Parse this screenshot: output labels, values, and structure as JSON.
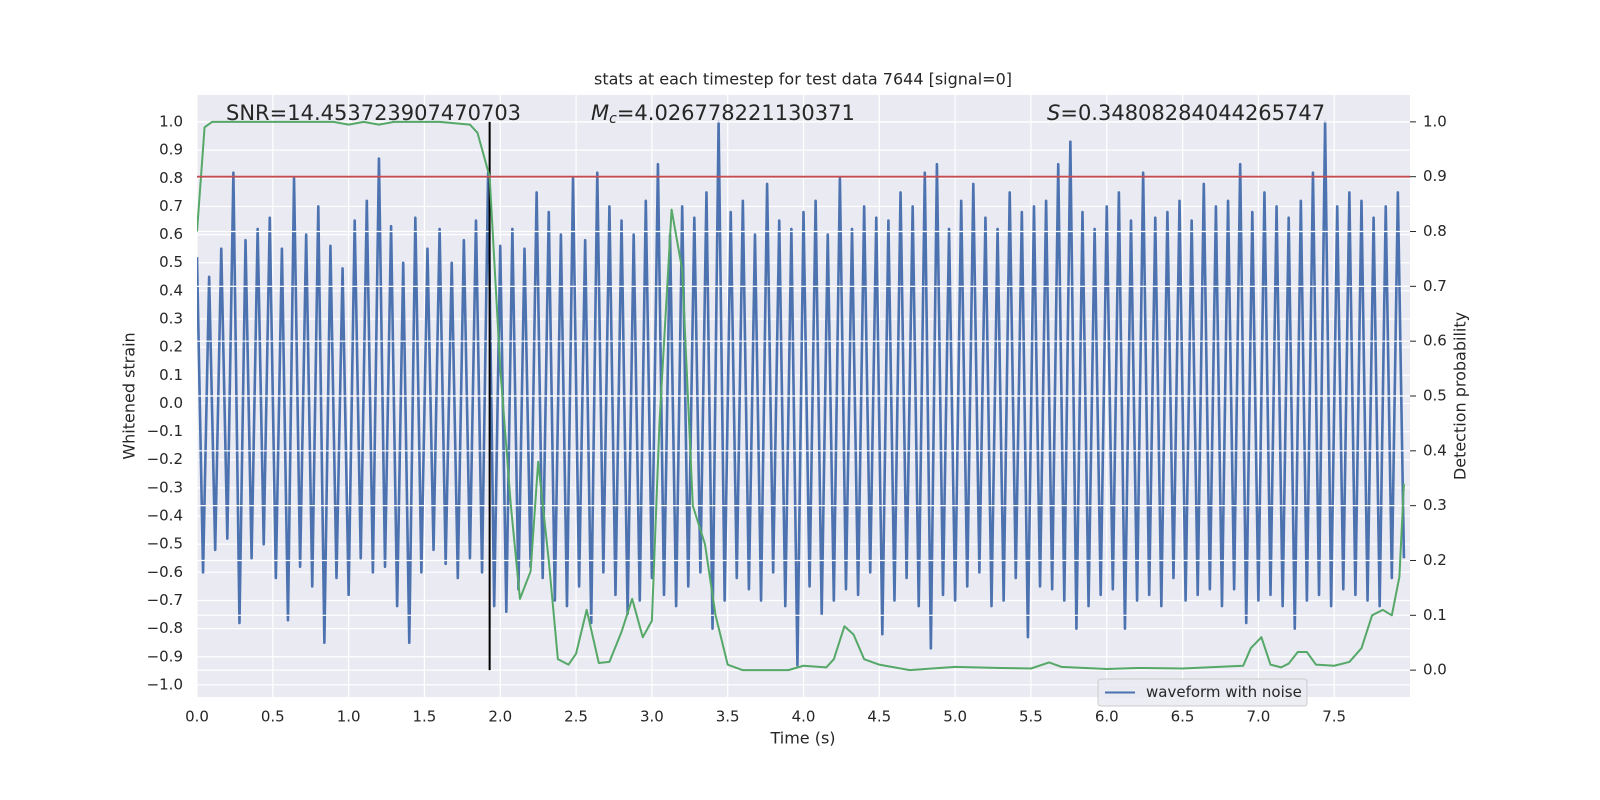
{
  "chart_data": {
    "type": "line",
    "title": "stats at each timestep for test data 7644 [signal=0]",
    "xlabel": "Time (s)",
    "ylabel": "Whitened strain",
    "y2label": "Detection probability",
    "annotations": [
      {
        "text": "SNR=14.453723907470703"
      },
      {
        "symbol": "M",
        "subscript": "c",
        "text": "=4.026778221130371"
      },
      {
        "symbol": "S",
        "text": "=0.34808284044265747"
      }
    ],
    "xlim": [
      0,
      8
    ],
    "ylim": [
      -1.043,
      1.096
    ],
    "y2lim": [
      -0.049,
      1.049
    ],
    "xticks": [
      {
        "value": 0,
        "label": "0.0"
      },
      {
        "value": 0.5,
        "label": "0.5"
      },
      {
        "value": 1,
        "label": "1.0"
      },
      {
        "value": 1.5,
        "label": "1.5"
      },
      {
        "value": 2,
        "label": "2.0"
      },
      {
        "value": 2.5,
        "label": "2.5"
      },
      {
        "value": 3,
        "label": "3.0"
      },
      {
        "value": 3.5,
        "label": "3.5"
      },
      {
        "value": 4,
        "label": "4.0"
      },
      {
        "value": 4.5,
        "label": "4.5"
      },
      {
        "value": 5,
        "label": "5.0"
      },
      {
        "value": 5.5,
        "label": "5.5"
      },
      {
        "value": 6,
        "label": "6.0"
      },
      {
        "value": 6.5,
        "label": "6.5"
      },
      {
        "value": 7,
        "label": "7.0"
      },
      {
        "value": 7.5,
        "label": "7.5"
      }
    ],
    "yticks": [
      {
        "value": -1,
        "label": "−1.0"
      },
      {
        "value": -0.9,
        "label": "−0.9"
      },
      {
        "value": -0.8,
        "label": "−0.8"
      },
      {
        "value": -0.7,
        "label": "−0.7"
      },
      {
        "value": -0.6,
        "label": "−0.6"
      },
      {
        "value": -0.5,
        "label": "−0.5"
      },
      {
        "value": -0.4,
        "label": "−0.4"
      },
      {
        "value": -0.3,
        "label": "−0.3"
      },
      {
        "value": -0.2,
        "label": "−0.2"
      },
      {
        "value": -0.1,
        "label": "−0.1"
      },
      {
        "value": 0,
        "label": "0.0"
      },
      {
        "value": 0.1,
        "label": "0.1"
      },
      {
        "value": 0.2,
        "label": "0.2"
      },
      {
        "value": 0.3,
        "label": "0.3"
      },
      {
        "value": 0.4,
        "label": "0.4"
      },
      {
        "value": 0.5,
        "label": "0.5"
      },
      {
        "value": 0.6,
        "label": "0.6"
      },
      {
        "value": 0.7,
        "label": "0.7"
      },
      {
        "value": 0.8,
        "label": "0.8"
      },
      {
        "value": 0.9,
        "label": "0.9"
      },
      {
        "value": 1,
        "label": "1.0"
      }
    ],
    "y2ticks": [
      {
        "value": 0,
        "label": "0.0"
      },
      0.1,
      0.2,
      0.3,
      0.4,
      0.5,
      0.6,
      0.7,
      0.8,
      0.9,
      {
        "value": 1,
        "label": "1.0"
      }
    ],
    "grid": true,
    "legend": "lower right",
    "hlines": [
      {
        "y": 0.9,
        "axis": "y2",
        "color": "#c44e52"
      }
    ],
    "vlines": [
      {
        "x": 1.93,
        "ymin": 0,
        "ymax": 1,
        "axis": "y2",
        "color": "#000000"
      }
    ],
    "series": [
      {
        "name": "waveform with noise",
        "color": "#4c72b0",
        "x": [
          0,
          0.04,
          0.08,
          0.12,
          0.16,
          0.2,
          0.24,
          0.28,
          0.32,
          0.36,
          0.4,
          0.44,
          0.48,
          0.52,
          0.56,
          0.6,
          0.64,
          0.68,
          0.72,
          0.76,
          0.8,
          0.84,
          0.88,
          0.92,
          0.96,
          1,
          1.04,
          1.08,
          1.12,
          1.16,
          1.2,
          1.24,
          1.28,
          1.32,
          1.36,
          1.4,
          1.44,
          1.48,
          1.52,
          1.56,
          1.6,
          1.64,
          1.68,
          1.72,
          1.76,
          1.8,
          1.84,
          1.88,
          1.92,
          1.96,
          2,
          2.04,
          2.08,
          2.12,
          2.16,
          2.2,
          2.24,
          2.28,
          2.32,
          2.36,
          2.4,
          2.44,
          2.48,
          2.52,
          2.56,
          2.6,
          2.64,
          2.68,
          2.72,
          2.76,
          2.8,
          2.84,
          2.88,
          2.92,
          2.96,
          3,
          3.04,
          3.08,
          3.12,
          3.16,
          3.2,
          3.24,
          3.28,
          3.32,
          3.36,
          3.4,
          3.44,
          3.48,
          3.52,
          3.56,
          3.6,
          3.64,
          3.68,
          3.72,
          3.76,
          3.8,
          3.84,
          3.88,
          3.92,
          3.96,
          4,
          4.04,
          4.08,
          4.12,
          4.16,
          4.2,
          4.24,
          4.28,
          4.32,
          4.36,
          4.4,
          4.44,
          4.48,
          4.52,
          4.56,
          4.6,
          4.64,
          4.68,
          4.72,
          4.76,
          4.8,
          4.84,
          4.88,
          4.92,
          4.96,
          5,
          5.04,
          5.08,
          5.12,
          5.16,
          5.2,
          5.24,
          5.28,
          5.32,
          5.36,
          5.4,
          5.44,
          5.48,
          5.52,
          5.56,
          5.6,
          5.64,
          5.68,
          5.72,
          5.76,
          5.8,
          5.84,
          5.88,
          5.92,
          5.96,
          6,
          6.04,
          6.08,
          6.12,
          6.16,
          6.2,
          6.24,
          6.28,
          6.32,
          6.36,
          6.4,
          6.44,
          6.48,
          6.52,
          6.56,
          6.6,
          6.64,
          6.68,
          6.72,
          6.76,
          6.8,
          6.84,
          6.88,
          6.92,
          6.96,
          7,
          7.04,
          7.08,
          7.12,
          7.16,
          7.2,
          7.24,
          7.28,
          7.32,
          7.36,
          7.4,
          7.44,
          7.48,
          7.52,
          7.56,
          7.6,
          7.64,
          7.68,
          7.72,
          7.76,
          7.8,
          7.84,
          7.88,
          7.92,
          7.96
        ],
        "values": [
          0.52,
          -0.6,
          0.45,
          -0.52,
          0.55,
          -0.48,
          0.82,
          -0.78,
          0.58,
          -0.55,
          0.62,
          -0.5,
          0.66,
          -0.62,
          0.55,
          -0.77,
          0.8,
          -0.58,
          0.6,
          -0.65,
          0.7,
          -0.85,
          0.56,
          -0.62,
          0.48,
          -0.68,
          0.65,
          -0.55,
          0.72,
          -0.6,
          0.87,
          -0.58,
          0.63,
          -0.72,
          0.5,
          -0.85,
          0.66,
          -0.6,
          0.55,
          -0.52,
          0.62,
          -0.57,
          0.5,
          -0.62,
          0.58,
          -0.55,
          0.65,
          -0.6,
          0.82,
          -0.72,
          0.56,
          -0.74,
          0.62,
          -0.66,
          0.55,
          -0.58,
          0.75,
          -0.62,
          0.68,
          -0.7,
          0.6,
          -0.72,
          0.8,
          -0.65,
          0.58,
          -0.78,
          0.82,
          -0.6,
          0.7,
          -0.68,
          0.65,
          -0.75,
          0.6,
          -0.7,
          0.72,
          -0.62,
          0.85,
          -0.68,
          0.6,
          -0.72,
          0.7,
          -0.65,
          0.66,
          -0.6,
          0.75,
          -0.8,
          1.0,
          -0.7,
          0.68,
          -0.62,
          0.72,
          -0.66,
          0.6,
          -0.7,
          0.78,
          -0.6,
          0.65,
          -0.72,
          0.62,
          -0.93,
          0.68,
          -0.65,
          0.72,
          -0.75,
          0.6,
          -0.7,
          0.8,
          -0.66,
          0.62,
          -0.68,
          0.7,
          -0.6,
          0.66,
          -0.82,
          0.65,
          -0.7,
          0.75,
          -0.62,
          0.7,
          -0.72,
          0.82,
          -0.87,
          0.85,
          -0.68,
          0.62,
          -0.7,
          0.72,
          -0.65,
          0.78,
          -0.6,
          0.66,
          -0.72,
          0.62,
          -0.7,
          0.75,
          -0.62,
          0.68,
          -0.83,
          0.7,
          -0.65,
          0.72,
          -0.66,
          0.85,
          -0.7,
          0.93,
          -0.8,
          0.68,
          -0.72,
          0.62,
          -0.68,
          0.7,
          -0.66,
          0.75,
          -0.8,
          0.65,
          -0.7,
          0.82,
          -0.68,
          0.66,
          -0.72,
          0.68,
          -0.62,
          0.72,
          -0.7,
          0.65,
          -0.68,
          0.78,
          -0.66,
          0.7,
          -0.72,
          0.72,
          -0.66,
          0.85,
          -0.78,
          0.68,
          -0.7,
          0.75,
          -0.68,
          0.7,
          -0.72,
          0.66,
          -0.8,
          0.72,
          -0.7,
          0.82,
          -0.68,
          1.0,
          -0.72,
          0.7,
          -0.66,
          0.75,
          -0.68,
          0.72,
          -0.7,
          0.66,
          -0.72,
          0.7,
          -0.62,
          0.75,
          -0.55
        ]
      },
      {
        "color": "#55a868",
        "axis": "y2",
        "x": [
          0,
          0.05,
          0.1,
          0.3,
          0.6,
          0.9,
          1.0,
          1.1,
          1.2,
          1.3,
          1.4,
          1.6,
          1.8,
          1.85,
          1.93,
          2.0,
          2.07,
          2.13,
          2.2,
          2.25,
          2.32,
          2.38,
          2.45,
          2.5,
          2.57,
          2.65,
          2.72,
          2.8,
          2.87,
          2.94,
          3.0,
          3.05,
          3.13,
          3.2,
          3.27,
          3.35,
          3.42,
          3.5,
          3.6,
          3.9,
          4.0,
          4.15,
          4.2,
          4.27,
          4.33,
          4.4,
          4.5,
          4.7,
          5.0,
          5.3,
          5.5,
          5.62,
          5.7,
          6.0,
          6.2,
          6.5,
          6.9,
          6.95,
          7.02,
          7.08,
          7.15,
          7.2,
          7.26,
          7.32,
          7.38,
          7.5,
          7.6,
          7.68,
          7.75,
          7.82,
          7.88,
          7.93,
          7.96
        ],
        "values": [
          0.8,
          0.99,
          1.0,
          1.0,
          1.0,
          1.0,
          0.995,
          1.0,
          0.995,
          1.0,
          1.0,
          1.0,
          0.995,
          0.98,
          0.9,
          0.55,
          0.3,
          0.13,
          0.18,
          0.38,
          0.2,
          0.02,
          0.01,
          0.03,
          0.11,
          0.013,
          0.015,
          0.07,
          0.13,
          0.06,
          0.09,
          0.45,
          0.84,
          0.73,
          0.3,
          0.23,
          0.1,
          0.01,
          0.0,
          0.0,
          0.008,
          0.005,
          0.02,
          0.08,
          0.065,
          0.02,
          0.01,
          0.0,
          0.006,
          0.004,
          0.003,
          0.014,
          0.006,
          0.002,
          0.004,
          0.003,
          0.008,
          0.04,
          0.06,
          0.01,
          0.005,
          0.012,
          0.033,
          0.033,
          0.01,
          0.008,
          0.015,
          0.04,
          0.1,
          0.11,
          0.1,
          0.17,
          0.34
        ]
      }
    ]
  }
}
